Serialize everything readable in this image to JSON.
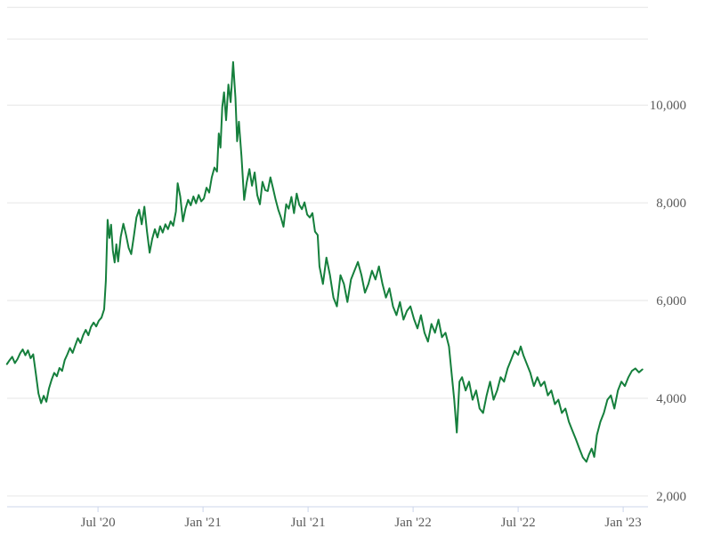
{
  "page": {
    "background": "#ffffff"
  },
  "colors": {
    "line": "#157f3c",
    "gridline": "#e6e6e6",
    "axis_line": "#ccd6eb",
    "label_text": "#5a5a5a"
  },
  "chart_data": {
    "type": "line",
    "title": "",
    "xlabel": "",
    "ylabel": "",
    "legend": "none",
    "grid": "horizontal",
    "x_unit": "months_since_2020_01",
    "xlim_months": [
      0.81,
      37.42
    ],
    "ylim": [
      1780,
      12150
    ],
    "x_ticks": [
      {
        "m": 6,
        "label": "Jul '20"
      },
      {
        "m": 12,
        "label": "Jan '21"
      },
      {
        "m": 18,
        "label": "Jul '21"
      },
      {
        "m": 24,
        "label": "Jan '22"
      },
      {
        "m": 30,
        "label": "Jul '22"
      },
      {
        "m": 36,
        "label": "Jan '23"
      }
    ],
    "y_ticks": [
      {
        "v": 2000,
        "label": "2,000"
      },
      {
        "v": 4000,
        "label": "4,000"
      },
      {
        "v": 6000,
        "label": "6,000"
      },
      {
        "v": 8000,
        "label": "8,000"
      },
      {
        "v": 10000,
        "label": "10,000"
      }
    ],
    "y_gridlines": [
      2000,
      4000,
      6000,
      8000,
      10000,
      12000
    ],
    "points": [
      [
        0.8,
        4700
      ],
      [
        0.95,
        4780
      ],
      [
        1.1,
        4850
      ],
      [
        1.25,
        4720
      ],
      [
        1.4,
        4800
      ],
      [
        1.55,
        4920
      ],
      [
        1.7,
        5000
      ],
      [
        1.85,
        4880
      ],
      [
        2.0,
        4980
      ],
      [
        2.15,
        4820
      ],
      [
        2.3,
        4900
      ],
      [
        2.45,
        4500
      ],
      [
        2.6,
        4100
      ],
      [
        2.75,
        3900
      ],
      [
        2.9,
        4050
      ],
      [
        3.05,
        3930
      ],
      [
        3.2,
        4200
      ],
      [
        3.35,
        4380
      ],
      [
        3.5,
        4520
      ],
      [
        3.65,
        4450
      ],
      [
        3.8,
        4620
      ],
      [
        3.95,
        4560
      ],
      [
        4.1,
        4780
      ],
      [
        4.25,
        4900
      ],
      [
        4.4,
        5030
      ],
      [
        4.55,
        4930
      ],
      [
        4.7,
        5080
      ],
      [
        4.85,
        5230
      ],
      [
        5.0,
        5130
      ],
      [
        5.15,
        5290
      ],
      [
        5.3,
        5400
      ],
      [
        5.45,
        5290
      ],
      [
        5.6,
        5460
      ],
      [
        5.75,
        5550
      ],
      [
        5.9,
        5470
      ],
      [
        6.05,
        5590
      ],
      [
        6.2,
        5650
      ],
      [
        6.35,
        5820
      ],
      [
        6.45,
        6400
      ],
      [
        6.55,
        7650
      ],
      [
        6.65,
        7280
      ],
      [
        6.75,
        7550
      ],
      [
        6.85,
        7020
      ],
      [
        6.95,
        6780
      ],
      [
        7.05,
        7150
      ],
      [
        7.15,
        6800
      ],
      [
        7.3,
        7300
      ],
      [
        7.45,
        7570
      ],
      [
        7.6,
        7350
      ],
      [
        7.75,
        7080
      ],
      [
        7.9,
        6950
      ],
      [
        8.05,
        7320
      ],
      [
        8.2,
        7700
      ],
      [
        8.35,
        7860
      ],
      [
        8.5,
        7560
      ],
      [
        8.65,
        7920
      ],
      [
        8.8,
        7420
      ],
      [
        8.95,
        6980
      ],
      [
        9.1,
        7260
      ],
      [
        9.25,
        7460
      ],
      [
        9.4,
        7290
      ],
      [
        9.55,
        7520
      ],
      [
        9.7,
        7390
      ],
      [
        9.85,
        7560
      ],
      [
        10.0,
        7460
      ],
      [
        10.15,
        7620
      ],
      [
        10.3,
        7530
      ],
      [
        10.45,
        7820
      ],
      [
        10.55,
        8400
      ],
      [
        10.7,
        8130
      ],
      [
        10.85,
        7620
      ],
      [
        11.0,
        7880
      ],
      [
        11.15,
        8060
      ],
      [
        11.3,
        7950
      ],
      [
        11.45,
        8130
      ],
      [
        11.6,
        7990
      ],
      [
        11.75,
        8160
      ],
      [
        11.9,
        8030
      ],
      [
        12.05,
        8090
      ],
      [
        12.2,
        8310
      ],
      [
        12.35,
        8210
      ],
      [
        12.5,
        8520
      ],
      [
        12.65,
        8720
      ],
      [
        12.8,
        8640
      ],
      [
        12.9,
        9420
      ],
      [
        13.0,
        9130
      ],
      [
        13.1,
        9960
      ],
      [
        13.2,
        10260
      ],
      [
        13.32,
        9690
      ],
      [
        13.45,
        10420
      ],
      [
        13.58,
        10060
      ],
      [
        13.72,
        10880
      ],
      [
        13.85,
        10150
      ],
      [
        13.95,
        9260
      ],
      [
        14.05,
        9660
      ],
      [
        14.2,
        8950
      ],
      [
        14.35,
        8060
      ],
      [
        14.5,
        8420
      ],
      [
        14.65,
        8690
      ],
      [
        14.8,
        8350
      ],
      [
        14.95,
        8620
      ],
      [
        15.1,
        8160
      ],
      [
        15.25,
        7970
      ],
      [
        15.4,
        8430
      ],
      [
        15.55,
        8260
      ],
      [
        15.7,
        8240
      ],
      [
        15.85,
        8520
      ],
      [
        16.0,
        8300
      ],
      [
        16.15,
        8060
      ],
      [
        16.3,
        7860
      ],
      [
        16.45,
        7700
      ],
      [
        16.6,
        7510
      ],
      [
        16.75,
        7970
      ],
      [
        16.9,
        7880
      ],
      [
        17.05,
        8120
      ],
      [
        17.2,
        7790
      ],
      [
        17.35,
        8190
      ],
      [
        17.5,
        7960
      ],
      [
        17.65,
        7870
      ],
      [
        17.8,
        8010
      ],
      [
        17.95,
        7760
      ],
      [
        18.1,
        7700
      ],
      [
        18.25,
        7790
      ],
      [
        18.4,
        7410
      ],
      [
        18.55,
        7340
      ],
      [
        18.65,
        6700
      ],
      [
        18.85,
        6340
      ],
      [
        19.05,
        6880
      ],
      [
        19.25,
        6520
      ],
      [
        19.45,
        6060
      ],
      [
        19.65,
        5880
      ],
      [
        19.85,
        6520
      ],
      [
        20.05,
        6340
      ],
      [
        20.25,
        5970
      ],
      [
        20.45,
        6430
      ],
      [
        20.65,
        6610
      ],
      [
        20.85,
        6790
      ],
      [
        21.05,
        6520
      ],
      [
        21.25,
        6160
      ],
      [
        21.45,
        6340
      ],
      [
        21.65,
        6610
      ],
      [
        21.85,
        6430
      ],
      [
        22.05,
        6700
      ],
      [
        22.25,
        6340
      ],
      [
        22.45,
        6060
      ],
      [
        22.65,
        6250
      ],
      [
        22.85,
        5880
      ],
      [
        23.05,
        5700
      ],
      [
        23.25,
        5970
      ],
      [
        23.45,
        5610
      ],
      [
        23.65,
        5790
      ],
      [
        23.85,
        5880
      ],
      [
        24.05,
        5620
      ],
      [
        24.25,
        5430
      ],
      [
        24.45,
        5700
      ],
      [
        24.65,
        5340
      ],
      [
        24.85,
        5160
      ],
      [
        25.05,
        5520
      ],
      [
        25.25,
        5340
      ],
      [
        25.45,
        5610
      ],
      [
        25.65,
        5250
      ],
      [
        25.85,
        5340
      ],
      [
        26.05,
        5060
      ],
      [
        26.2,
        4520
      ],
      [
        26.35,
        3970
      ],
      [
        26.5,
        3300
      ],
      [
        26.65,
        4340
      ],
      [
        26.8,
        4430
      ],
      [
        27.0,
        4160
      ],
      [
        27.2,
        4340
      ],
      [
        27.4,
        3970
      ],
      [
        27.6,
        4160
      ],
      [
        27.8,
        3790
      ],
      [
        28.0,
        3700
      ],
      [
        28.2,
        4060
      ],
      [
        28.4,
        4340
      ],
      [
        28.6,
        3970
      ],
      [
        28.8,
        4160
      ],
      [
        29.0,
        4430
      ],
      [
        29.2,
        4340
      ],
      [
        29.4,
        4610
      ],
      [
        29.6,
        4790
      ],
      [
        29.8,
        4970
      ],
      [
        30.0,
        4890
      ],
      [
        30.15,
        5060
      ],
      [
        30.3,
        4880
      ],
      [
        30.5,
        4700
      ],
      [
        30.7,
        4520
      ],
      [
        30.9,
        4250
      ],
      [
        31.1,
        4430
      ],
      [
        31.3,
        4250
      ],
      [
        31.5,
        4340
      ],
      [
        31.7,
        4060
      ],
      [
        31.9,
        4160
      ],
      [
        32.1,
        3880
      ],
      [
        32.3,
        3970
      ],
      [
        32.5,
        3700
      ],
      [
        32.7,
        3790
      ],
      [
        32.9,
        3520
      ],
      [
        33.1,
        3340
      ],
      [
        33.3,
        3160
      ],
      [
        33.5,
        2970
      ],
      [
        33.7,
        2790
      ],
      [
        33.9,
        2700
      ],
      [
        34.05,
        2850
      ],
      [
        34.2,
        2970
      ],
      [
        34.35,
        2800
      ],
      [
        34.5,
        3250
      ],
      [
        34.7,
        3520
      ],
      [
        34.9,
        3700
      ],
      [
        35.1,
        3970
      ],
      [
        35.3,
        4060
      ],
      [
        35.5,
        3790
      ],
      [
        35.7,
        4160
      ],
      [
        35.9,
        4340
      ],
      [
        36.1,
        4250
      ],
      [
        36.3,
        4430
      ],
      [
        36.5,
        4560
      ],
      [
        36.7,
        4610
      ],
      [
        36.9,
        4530
      ],
      [
        37.1,
        4590
      ]
    ]
  }
}
